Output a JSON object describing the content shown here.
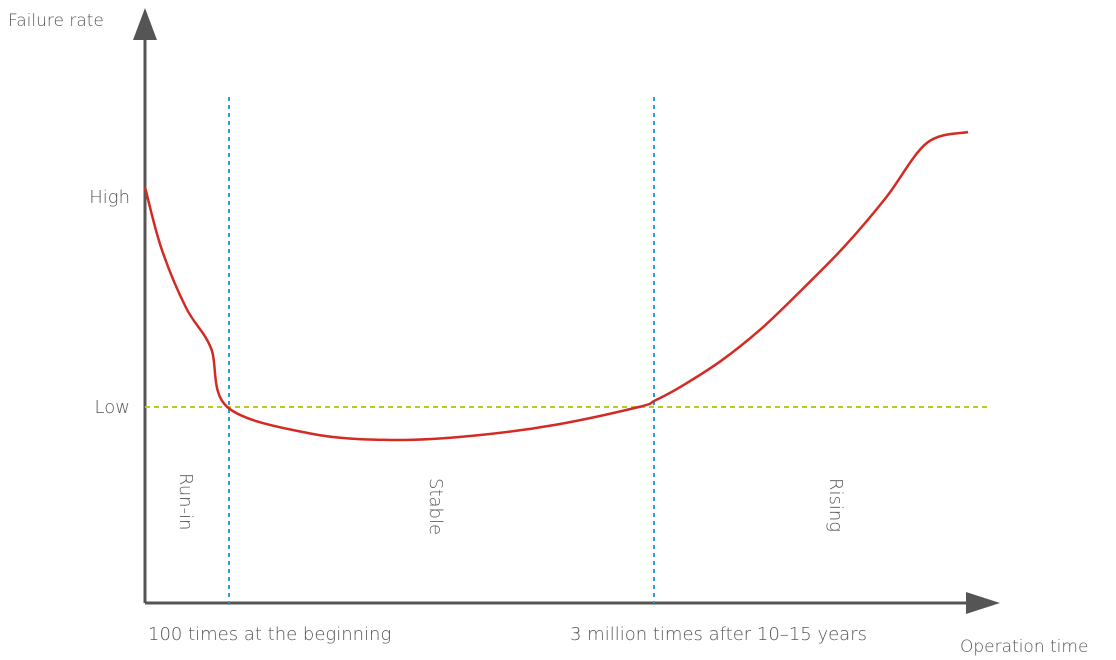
{
  "chart_data": {
    "type": "line",
    "ylabel": "Failure rate",
    "xlabel": "Operation time",
    "y_ticks": [
      "High",
      "Low"
    ],
    "x_markers": [
      "100 times at the beginning",
      "3 million times after 10–15 years"
    ],
    "phases": [
      "Run-in",
      "Stable",
      "Rising"
    ],
    "series": [
      {
        "x": [
          0,
          0.02,
          0.05,
          0.08,
          0.1,
          0.2,
          0.3,
          0.4,
          0.5,
          0.6,
          0.62,
          0.65,
          0.7,
          0.75,
          0.8,
          0.85,
          0.9,
          0.95,
          1.0
        ],
        "y": [
          1.0,
          0.72,
          0.45,
          0.27,
          0.0,
          -0.12,
          -0.15,
          -0.13,
          -0.08,
          0.0,
          0.03,
          0.09,
          0.21,
          0.36,
          0.54,
          0.73,
          0.95,
          1.2,
          1.25
        ]
      }
    ],
    "reference_lines": {
      "horizontal": "Low",
      "vertical": [
        "100 times at the beginning",
        "3 million times after 10–15 years"
      ]
    },
    "colors": {
      "curve": "#d42a24",
      "reference_horizontal": "#b8cc1c",
      "reference_vertical": "#2f9ad6",
      "axis": "#555555"
    }
  }
}
